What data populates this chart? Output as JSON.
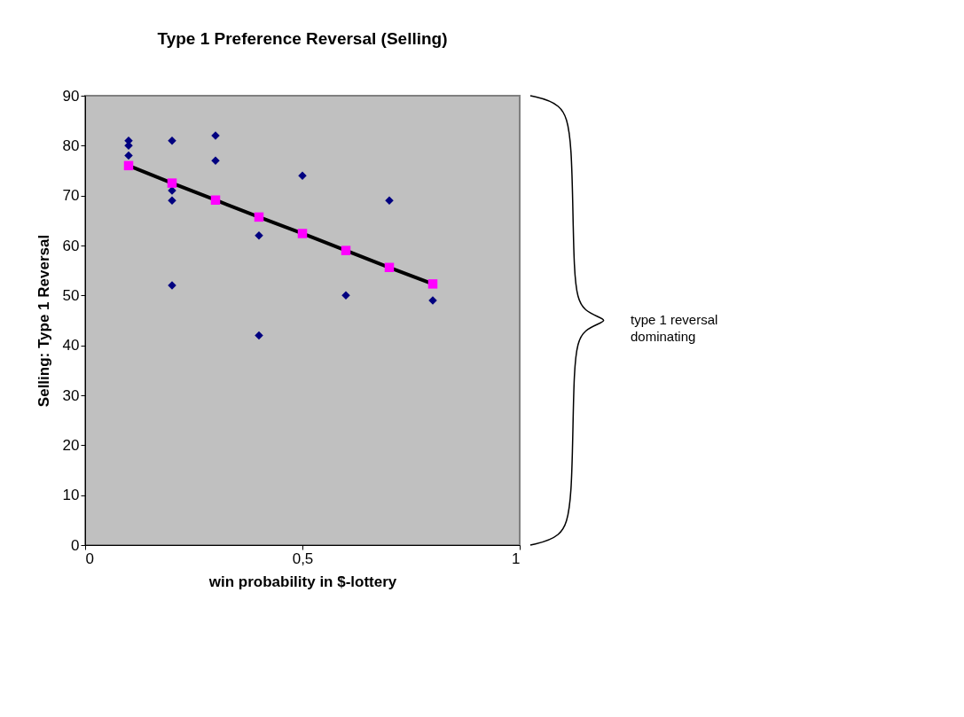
{
  "chart_data": {
    "type": "scatter",
    "title": "Type 1 Preference Reversal (Selling)",
    "xlabel": "win probability in $-lottery",
    "ylabel": "Selling: Type 1 Reversal",
    "series": [
      {
        "color": "#000080",
        "marker": "diamond",
        "x": [
          0.1,
          0.1,
          0.1,
          0.2,
          0.2,
          0.2,
          0.2,
          0.3,
          0.3,
          0.4,
          0.4,
          0.5,
          0.6,
          0.7,
          0.8
        ],
        "values": [
          81,
          80,
          78,
          81,
          71,
          69,
          52,
          82,
          77,
          62,
          42,
          74,
          50,
          69,
          49
        ]
      },
      {
        "type": "line",
        "color": "#000000",
        "marker": "none",
        "line_style": "solid",
        "x": [
          0.1,
          0.2,
          0.3,
          0.4,
          0.5,
          0.6,
          0.7,
          0.8
        ],
        "values": [
          76,
          72.5,
          69.1,
          65.7,
          62.4,
          59,
          55.6,
          52.3
        ]
      },
      {
        "type": "scatter",
        "color": "#ff00ff",
        "marker": "square",
        "x": [
          0.1,
          0.2,
          0.3,
          0.4,
          0.5,
          0.6,
          0.7,
          0.8
        ],
        "values": [
          76,
          72.5,
          69.1,
          65.7,
          62.4,
          59,
          55.6,
          52.3
        ]
      }
    ],
    "annotations": [
      "type 1 reversal dominating"
    ],
    "xlim": [
      0,
      1
    ],
    "xticks": [
      0,
      {
        "value": 0.5,
        "label": "0,5"
      },
      1
    ],
    "ylim": [
      0,
      90
    ],
    "yticks": [
      0,
      10,
      20,
      30,
      40,
      50,
      60,
      70,
      80,
      90
    ],
    "grid": false
  }
}
